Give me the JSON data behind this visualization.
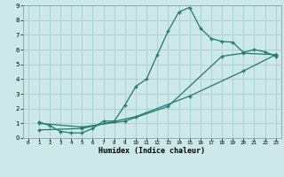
{
  "xlabel": "Humidex (Indice chaleur)",
  "background_color": "#cce8e8",
  "grid_color": "#aacccc",
  "line_color": "#1e7a6e",
  "xlim": [
    -0.5,
    23.5
  ],
  "ylim": [
    0,
    9
  ],
  "xticks": [
    0,
    1,
    2,
    3,
    4,
    5,
    6,
    7,
    8,
    9,
    10,
    11,
    12,
    13,
    14,
    15,
    16,
    17,
    18,
    19,
    20,
    21,
    22,
    23
  ],
  "yticks": [
    0,
    1,
    2,
    3,
    4,
    5,
    6,
    7,
    8,
    9
  ],
  "curve1_x": [
    1,
    2,
    3,
    4,
    5,
    6,
    7,
    8,
    9,
    10,
    11,
    12,
    13,
    14,
    15,
    16,
    17,
    18,
    19,
    20,
    21,
    22,
    23
  ],
  "curve1_y": [
    1.1,
    0.85,
    0.45,
    0.35,
    0.35,
    0.65,
    1.15,
    1.15,
    2.25,
    3.5,
    4.0,
    5.65,
    7.25,
    8.55,
    8.85,
    7.45,
    6.75,
    6.55,
    6.5,
    5.8,
    6.0,
    5.85,
    5.55
  ],
  "curve2_x": [
    1,
    5,
    9,
    13,
    18,
    20,
    23
  ],
  "curve2_y": [
    1.0,
    0.75,
    1.15,
    2.15,
    5.55,
    5.75,
    5.65
  ],
  "curve3_x": [
    1,
    5,
    10,
    15,
    20,
    23
  ],
  "curve3_y": [
    0.55,
    0.65,
    1.45,
    2.85,
    4.55,
    5.65
  ]
}
